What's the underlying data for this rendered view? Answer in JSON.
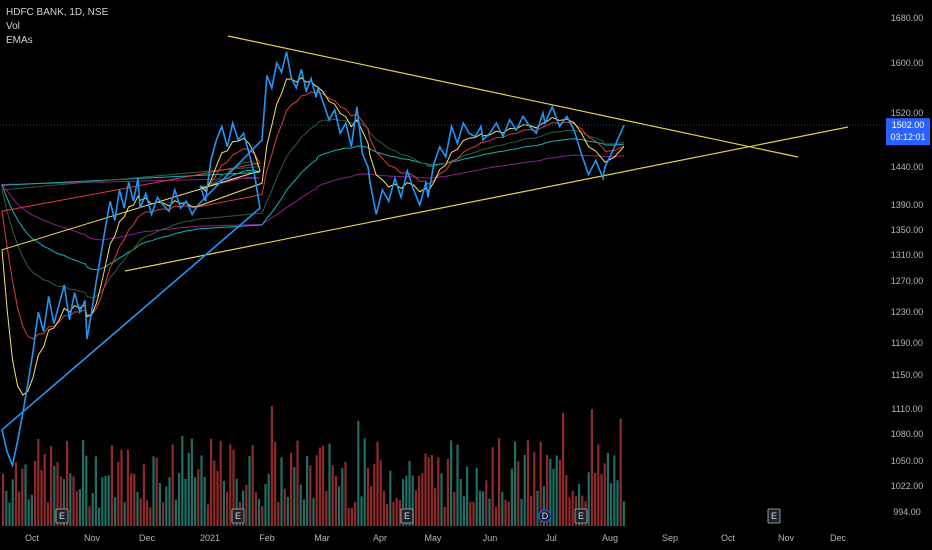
{
  "legend": {
    "symbol": "HDFC BANK, 1D, NSE",
    "vol": "Vol",
    "emas": "EMAs"
  },
  "price_tag": {
    "value": "1502.00",
    "countdown": "03:12:01",
    "color": "#2962ff"
  },
  "event_marker_letter": "E",
  "dividend_marker_letter": "D",
  "colors": {
    "price": "#2196f3",
    "trendline": "#e6d24a",
    "ema_fast": "#f5e16a",
    "ema_red": "#d63c3c",
    "ema_green": "#2f5e3b",
    "ema_teal": "#16b3b0",
    "ema_purple": "#8e1f8f",
    "vol_up": "#1f6d63",
    "vol_down": "#8f2a2a"
  },
  "chart_data": {
    "type": "line",
    "title": "HDFC BANK, 1D, NSE",
    "y_ticks": [
      1680,
      1600,
      1520,
      1440,
      1390,
      1350,
      1310,
      1270,
      1230,
      1190,
      1150,
      1110,
      1080,
      1050,
      1022,
      994
    ],
    "y_tick_labels": [
      "1680.00",
      "1600.00",
      "1520.00",
      "1440.00",
      "1390.00",
      "1350.00",
      "1310.00",
      "1270.00",
      "1230.00",
      "1190.00",
      "1150.00",
      "1110.00",
      "1080.00",
      "1050.00",
      "1022.00",
      "994.00"
    ],
    "x_tick_labels": [
      "Oct",
      "Nov",
      "Dec",
      "2021",
      "Feb",
      "Mar",
      "Apr",
      "May",
      "Jun",
      "Jul",
      "Aug",
      "Sep",
      "Oct",
      "Nov",
      "Dec"
    ],
    "last_price": 1502.0,
    "price_series": {
      "name": "HDFC BANK",
      "points": [
        [
          "Oct",
          1085
        ],
        [
          "Oct",
          1060
        ],
        [
          "Oct",
          1045
        ],
        [
          "Oct",
          1072
        ],
        [
          "Oct",
          1105
        ],
        [
          "Oct",
          1140
        ],
        [
          "Oct",
          1180
        ],
        [
          "Oct",
          1230
        ],
        [
          "Oct",
          1205
        ],
        [
          "Oct",
          1250
        ],
        [
          "Oct",
          1215
        ],
        [
          "Oct",
          1240
        ],
        [
          "Oct",
          1265
        ],
        [
          "Oct",
          1220
        ],
        [
          "Oct",
          1255
        ],
        [
          "Oct",
          1230
        ],
        [
          "Oct",
          1245
        ],
        [
          "Nov",
          1195
        ],
        [
          "Nov",
          1230
        ],
        [
          "Nov",
          1270
        ],
        [
          "Nov",
          1310
        ],
        [
          "Nov",
          1355
        ],
        [
          "Nov",
          1395
        ],
        [
          "Nov",
          1365
        ],
        [
          "Nov",
          1410
        ],
        [
          "Nov",
          1385
        ],
        [
          "Nov",
          1420
        ],
        [
          "Nov",
          1395
        ],
        [
          "Nov",
          1425
        ],
        [
          "Dec",
          1385
        ],
        [
          "Dec",
          1405
        ],
        [
          "Dec",
          1375
        ],
        [
          "Dec",
          1400
        ],
        [
          "Dec",
          1390
        ],
        [
          "Dec",
          1380
        ],
        [
          "Dec",
          1410
        ],
        [
          "Dec",
          1385
        ],
        [
          "Dec",
          1395
        ],
        [
          "Dec",
          1375
        ],
        [
          "Dec",
          1390
        ],
        [
          "2021",
          1415
        ],
        [
          "2021",
          1395
        ],
        [
          "2021",
          1450
        ],
        [
          "2021",
          1480
        ],
        [
          "2021",
          1500
        ],
        [
          "2021",
          1470
        ],
        [
          "2021",
          1505
        ],
        [
          "2021",
          1480
        ],
        [
          "2021",
          1490
        ],
        [
          "2021",
          1460
        ],
        [
          "2021",
          1430
        ],
        [
          "2021",
          1385
        ],
        [
          "Feb",
          1480
        ],
        [
          "Feb",
          1580
        ],
        [
          "Feb",
          1560
        ],
        [
          "Feb",
          1600
        ],
        [
          "Feb",
          1585
        ],
        [
          "Feb",
          1620
        ],
        [
          "Feb",
          1575
        ],
        [
          "Feb",
          1560
        ],
        [
          "Feb",
          1590
        ],
        [
          "Feb",
          1555
        ],
        [
          "Feb",
          1575
        ],
        [
          "Feb",
          1545
        ],
        [
          "Mar",
          1560
        ],
        [
          "Mar",
          1535
        ],
        [
          "Mar",
          1510
        ],
        [
          "Mar",
          1525
        ],
        [
          "Mar",
          1490
        ],
        [
          "Mar",
          1505
        ],
        [
          "Mar",
          1470
        ],
        [
          "Mar",
          1530
        ],
        [
          "Mar",
          1460
        ],
        [
          "Mar",
          1440
        ],
        [
          "Apr",
          1420
        ],
        [
          "Apr",
          1375
        ],
        [
          "Apr",
          1410
        ],
        [
          "Apr",
          1395
        ],
        [
          "Apr",
          1425
        ],
        [
          "Apr",
          1400
        ],
        [
          "Apr",
          1435
        ],
        [
          "Apr",
          1410
        ],
        [
          "Apr",
          1390
        ],
        [
          "Apr",
          1420
        ],
        [
          "May",
          1400
        ],
        [
          "May",
          1445
        ],
        [
          "May",
          1470
        ],
        [
          "May",
          1455
        ],
        [
          "May",
          1500
        ],
        [
          "May",
          1475
        ],
        [
          "May",
          1505
        ],
        [
          "May",
          1490
        ],
        [
          "May",
          1485
        ],
        [
          "May",
          1500
        ],
        [
          "Jun",
          1480
        ],
        [
          "Jun",
          1490
        ],
        [
          "Jun",
          1505
        ],
        [
          "Jun",
          1485
        ],
        [
          "Jun",
          1510
        ],
        [
          "Jun",
          1495
        ],
        [
          "Jun",
          1515
        ],
        [
          "Jun",
          1500
        ],
        [
          "Jun",
          1490
        ],
        [
          "Jun",
          1520
        ],
        [
          "Jul",
          1505
        ],
        [
          "Jul",
          1530
        ],
        [
          "Jul",
          1500
        ],
        [
          "Jul",
          1515
        ],
        [
          "Jul",
          1495
        ],
        [
          "Jul",
          1460
        ],
        [
          "Jul",
          1430
        ],
        [
          "Jul",
          1450
        ],
        [
          "Jul",
          1425
        ],
        [
          "Aug",
          1440
        ],
        [
          "Aug",
          1470
        ],
        [
          "Aug",
          1502
        ]
      ]
    },
    "volume_note": "Volume histogram in lower pane (up/down colored)"
  }
}
